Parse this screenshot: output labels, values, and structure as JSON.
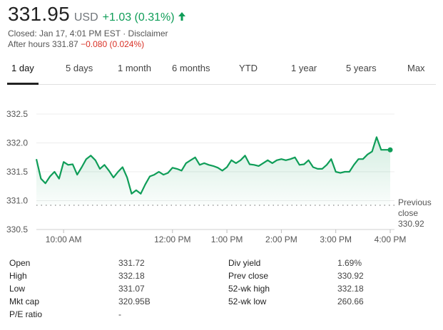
{
  "quote": {
    "price": "331.95",
    "currency": "USD",
    "change": "+1.03 (0.31%)",
    "closed_label": "Closed: Jan 17, 4:01 PM EST · Disclaimer",
    "after_hours_prefix": "After hours 331.87",
    "after_hours_change": "−0.080 (0.024%)",
    "colors": {
      "up": "#0f9d58",
      "down": "#d93025"
    }
  },
  "tabs": [
    {
      "label": "1 day",
      "active": true
    },
    {
      "label": "5 days"
    },
    {
      "label": "1 month"
    },
    {
      "label": "6 months"
    },
    {
      "label": "YTD"
    },
    {
      "label": "1 year"
    },
    {
      "label": "5 years"
    },
    {
      "label": "Max"
    }
  ],
  "chart_data": {
    "type": "area",
    "y_ticks": [
      "332.5",
      "332.0",
      "331.5",
      "331.0",
      "330.5"
    ],
    "ylim": [
      330.5,
      332.5
    ],
    "x_ticks": [
      "10:00 AM",
      "12:00 PM",
      "1:00 PM",
      "2:00 PM",
      "3:00 PM",
      "4:00 PM"
    ],
    "previous_close": {
      "value": 330.92,
      "label_line1": "Previous",
      "label_line2": "close",
      "value_label": "330.92"
    },
    "line_color": "#0f9d58",
    "x_minutes": [
      0,
      5,
      10,
      15,
      20,
      25,
      30,
      35,
      40,
      45,
      50,
      55,
      60,
      65,
      70,
      75,
      80,
      85,
      90,
      95,
      100,
      105,
      110,
      115,
      120,
      125,
      130,
      135,
      140,
      145,
      150,
      155,
      160,
      165,
      170,
      175,
      180,
      185,
      190,
      195,
      200,
      205,
      210,
      215,
      220,
      225,
      230,
      235,
      240,
      245,
      250,
      255,
      260,
      265,
      270,
      275,
      280,
      285,
      290,
      295,
      300,
      305,
      310,
      315,
      320,
      325,
      330,
      335,
      340,
      345,
      350,
      355,
      360,
      365,
      370,
      375,
      380,
      385,
      390
    ],
    "values": [
      331.72,
      331.38,
      331.3,
      331.42,
      331.5,
      331.38,
      331.67,
      331.62,
      331.63,
      331.45,
      331.58,
      331.72,
      331.78,
      331.7,
      331.55,
      331.62,
      331.52,
      331.4,
      331.5,
      331.58,
      331.4,
      331.12,
      331.18,
      331.12,
      331.28,
      331.42,
      331.45,
      331.5,
      331.45,
      331.48,
      331.57,
      331.55,
      331.52,
      331.65,
      331.7,
      331.75,
      331.62,
      331.65,
      331.62,
      331.6,
      331.57,
      331.52,
      331.58,
      331.7,
      331.65,
      331.7,
      331.78,
      331.63,
      331.62,
      331.6,
      331.65,
      331.7,
      331.65,
      331.7,
      331.72,
      331.7,
      331.72,
      331.75,
      331.62,
      331.63,
      331.7,
      331.58,
      331.55,
      331.55,
      331.62,
      331.72,
      331.5,
      331.48,
      331.5,
      331.5,
      331.62,
      331.72,
      331.72,
      331.8,
      331.85,
      332.1,
      331.88,
      331.88,
      331.88
    ]
  },
  "stats": {
    "left": [
      {
        "label": "Open",
        "value": "331.72"
      },
      {
        "label": "High",
        "value": "332.18"
      },
      {
        "label": "Low",
        "value": "331.07"
      },
      {
        "label": "Mkt cap",
        "value": "320.95B"
      },
      {
        "label": "P/E ratio",
        "value": "-"
      }
    ],
    "right": [
      {
        "label": "Div yield",
        "value": "1.69%"
      },
      {
        "label": "Prev close",
        "value": "330.92"
      },
      {
        "label": "52-wk high",
        "value": "332.18"
      },
      {
        "label": "52-wk low",
        "value": "260.66"
      }
    ]
  }
}
